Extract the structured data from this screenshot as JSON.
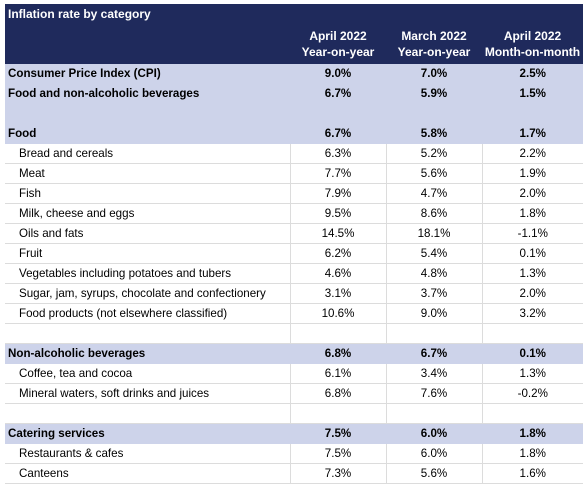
{
  "title": "Inflation rate by category",
  "headers": [
    {
      "line1": "April 2022",
      "line2": "Year-on-year"
    },
    {
      "line1": "March 2022",
      "line2": "Year-on-year"
    },
    {
      "line1": "April 2022",
      "line2": "Month-on-month"
    }
  ],
  "rows": [
    {
      "label": "Consumer Price Index (CPI)",
      "v1": "9.0%",
      "v2": "7.0%",
      "v3": "2.5%",
      "style": "band"
    },
    {
      "label": "Food and non-alcoholic beverages",
      "v1": "6.7%",
      "v2": "5.9%",
      "v3": "1.5%",
      "style": "band"
    },
    {
      "label": "",
      "v1": "",
      "v2": "",
      "v3": "",
      "style": "bandblank"
    },
    {
      "label": "Food",
      "v1": "6.7%",
      "v2": "5.8%",
      "v3": "1.7%",
      "style": "band"
    },
    {
      "label": "Bread and cereals",
      "v1": "6.3%",
      "v2": "5.2%",
      "v3": "2.2%",
      "style": "item"
    },
    {
      "label": "Meat",
      "v1": "7.7%",
      "v2": "5.6%",
      "v3": "1.9%",
      "style": "item"
    },
    {
      "label": "Fish",
      "v1": "7.9%",
      "v2": "4.7%",
      "v3": "2.0%",
      "style": "item"
    },
    {
      "label": "Milk, cheese and eggs",
      "v1": "9.5%",
      "v2": "8.6%",
      "v3": "1.8%",
      "style": "item"
    },
    {
      "label": "Oils and fats",
      "v1": "14.5%",
      "v2": "18.1%",
      "v3": "-1.1%",
      "style": "item"
    },
    {
      "label": "Fruit",
      "v1": "6.2%",
      "v2": "5.4%",
      "v3": "0.1%",
      "style": "item"
    },
    {
      "label": "Vegetables including potatoes and tubers",
      "v1": "4.6%",
      "v2": "4.8%",
      "v3": "1.3%",
      "style": "item"
    },
    {
      "label": "Sugar, jam, syrups, chocolate and confectionery",
      "v1": "3.1%",
      "v2": "3.7%",
      "v3": "2.0%",
      "style": "item"
    },
    {
      "label": "Food products (not elsewhere classified)",
      "v1": "10.6%",
      "v2": "9.0%",
      "v3": "3.2%",
      "style": "item"
    },
    {
      "label": "",
      "v1": "",
      "v2": "",
      "v3": "",
      "style": "blank"
    },
    {
      "label": "Non-alcoholic beverages",
      "v1": "6.8%",
      "v2": "6.7%",
      "v3": "0.1%",
      "style": "band"
    },
    {
      "label": "Coffee, tea and cocoa",
      "v1": "6.1%",
      "v2": "3.4%",
      "v3": "1.3%",
      "style": "item"
    },
    {
      "label": "Mineral waters, soft drinks and juices",
      "v1": "6.8%",
      "v2": "7.6%",
      "v3": "-0.2%",
      "style": "item"
    },
    {
      "label": "",
      "v1": "",
      "v2": "",
      "v3": "",
      "style": "blank"
    },
    {
      "label": "Catering services",
      "v1": "7.5%",
      "v2": "6.0%",
      "v3": "1.8%",
      "style": "band"
    },
    {
      "label": "Restaurants & cafes",
      "v1": "7.5%",
      "v2": "6.0%",
      "v3": "1.8%",
      "style": "item"
    },
    {
      "label": "Canteens",
      "v1": "7.3%",
      "v2": "5.6%",
      "v3": "1.6%",
      "style": "item"
    }
  ],
  "colors": {
    "header_bg": "#1f2a5c",
    "band_bg": "#cdd3ea"
  }
}
